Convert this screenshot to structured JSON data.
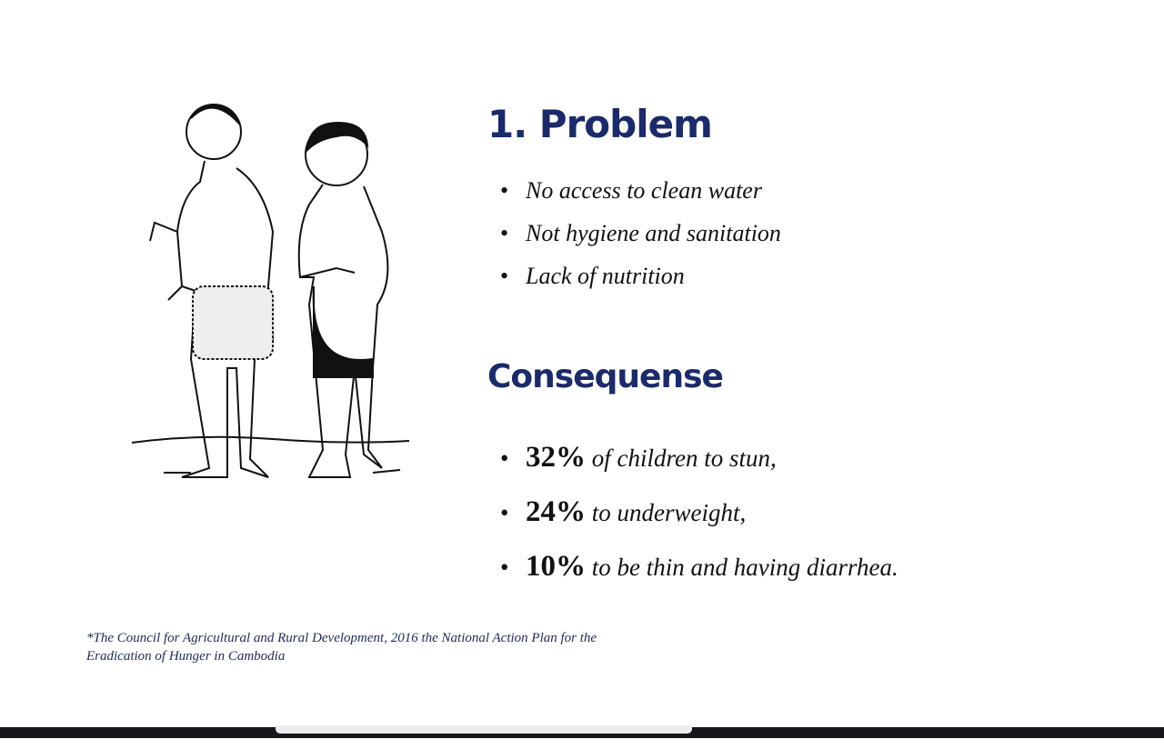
{
  "problem": {
    "title": "1. Problem",
    "items": [
      "No  access to clean water",
      "Not hygiene and sanitation",
      "Lack of nutrition"
    ]
  },
  "consequence": {
    "title": "Consequense",
    "items": [
      {
        "value": "32%",
        "text": " of children to stun,"
      },
      {
        "value": "24%",
        "text": " to underweight,"
      },
      {
        "value": "10%",
        "text": " to be thin and having diarrhea."
      }
    ]
  },
  "footnote": {
    "line1": "*The Council for Agricultural and Rural Development, 2016 the National Action Plan for the",
    "line2": "Eradication of Hunger in Cambodia"
  },
  "bullet": "•",
  "colors": {
    "heading": "#1a2a6b",
    "footnote": "#1e2b5a"
  }
}
